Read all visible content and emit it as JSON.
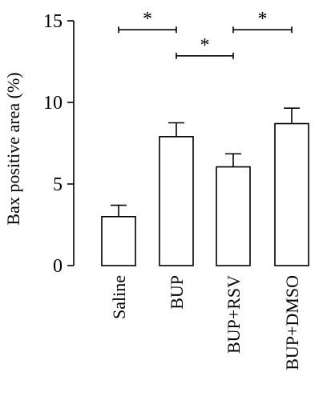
{
  "chart_data": {
    "type": "bar",
    "categories": [
      "Saline",
      "BUP",
      "BUP+RSV",
      "BUP+DMSO"
    ],
    "values": [
      3.0,
      7.9,
      6.05,
      8.7
    ],
    "errors": [
      0.7,
      0.85,
      0.8,
      0.95
    ],
    "title": "",
    "xlabel": "",
    "ylabel": "Bax positive area (%)",
    "ylim": [
      0,
      15
    ],
    "yticks": [
      0,
      5,
      10,
      15
    ],
    "grid": false,
    "bar_fill": "#ffffff",
    "bar_stroke": "#000000",
    "significance": [
      {
        "from": 0,
        "to": 1,
        "label": "*",
        "y": 14.45
      },
      {
        "from": 1,
        "to": 2,
        "label": "*",
        "y": 12.85
      },
      {
        "from": 2,
        "to": 3,
        "label": "*",
        "y": 14.45
      }
    ]
  }
}
